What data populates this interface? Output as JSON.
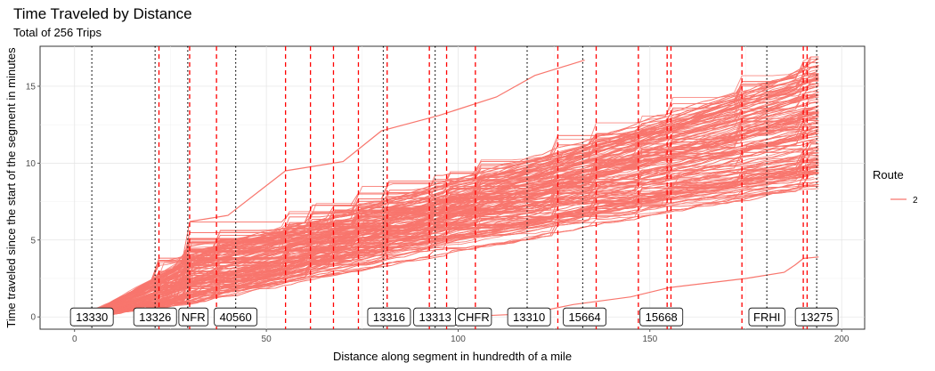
{
  "chart_data": {
    "type": "line",
    "title": "Time Traveled by Distance",
    "subtitle": "Total of 256 Trips",
    "xlabel": "Distance along segment in hundredth of a mile",
    "ylabel": "Time traveled since the start of the segment in minutes",
    "xlim": [
      -9,
      206
    ],
    "ylim": [
      -0.8,
      17.6
    ],
    "x_ticks": [
      0,
      50,
      100,
      150,
      200
    ],
    "y_ticks": [
      0,
      5,
      10,
      15
    ],
    "grid": true,
    "legend": {
      "title": "Route",
      "entries": [
        {
          "name": "2",
          "color": "#F8766D"
        }
      ],
      "position": "right"
    },
    "series_color": "#F8766D",
    "trip_count": 256,
    "reference_lines": {
      "stops_dotted": [
        4.5,
        21,
        29.5,
        42,
        80.5,
        94,
        118,
        132.5,
        180.5,
        193.5
      ],
      "timepoints_dashed": [
        22,
        30,
        37,
        55,
        61.5,
        67.5,
        74,
        81.5,
        92.5,
        97,
        104.5,
        126,
        136,
        147,
        154.5,
        155.5,
        174,
        190,
        191
      ]
    },
    "stop_labels": [
      {
        "label": "13330",
        "x": 4.5
      },
      {
        "label": "13326",
        "x": 21
      },
      {
        "label": "NFR",
        "x": 31
      },
      {
        "label": "40560",
        "x": 42
      },
      {
        "label": "13316",
        "x": 82
      },
      {
        "label": "13313",
        "x": 94
      },
      {
        "label": "CHFR",
        "x": 104
      },
      {
        "label": "13310",
        "x": 118.5
      },
      {
        "label": "15664",
        "x": 133
      },
      {
        "label": "15668",
        "x": 153
      },
      {
        "label": "FRHI",
        "x": 180.5
      },
      {
        "label": "13275",
        "x": 193.5
      }
    ],
    "representative_trips": [
      {
        "x": [
          0,
          10,
          20,
          30,
          45,
          55,
          70,
          80,
          95,
          105,
          120,
          135,
          150,
          165,
          180,
          190,
          194
        ],
        "y": [
          0,
          0.6,
          1.2,
          2.3,
          3.0,
          3.8,
          4.5,
          5.2,
          6.4,
          7.0,
          7.6,
          8.4,
          9.6,
          10.3,
          11.2,
          12.0,
          12.4
        ]
      },
      {
        "x": [
          0,
          20,
          30,
          55,
          80,
          100,
          130,
          150,
          180,
          194
        ],
        "y": [
          0,
          0.5,
          1.5,
          2.5,
          3.7,
          5.0,
          6.3,
          7.8,
          8.6,
          9.4
        ]
      },
      {
        "x": [
          0,
          20,
          30,
          55,
          75,
          95,
          120,
          145,
          175,
          194
        ],
        "y": [
          0,
          1.3,
          4.6,
          5.6,
          7.0,
          8.7,
          10.2,
          12.0,
          14.6,
          15.7
        ]
      },
      {
        "x": [
          30,
          40,
          55,
          70,
          80,
          95,
          110,
          120,
          133
        ],
        "y": [
          6.2,
          6.6,
          9.5,
          10.1,
          12.1,
          13.1,
          14.3,
          15.7,
          16.7
        ]
      },
      {
        "x": [
          0,
          20,
          30,
          80,
          110,
          130,
          150,
          175,
          194
        ],
        "y": [
          0,
          1.5,
          3.0,
          6.3,
          8.3,
          9.8,
          11.6,
          14.1,
          16.8
        ]
      }
    ],
    "outlier_trip": {
      "x": [
        100,
        118,
        120,
        130,
        145,
        155,
        175,
        185,
        188,
        190,
        194
      ],
      "y": [
        0,
        0.2,
        0.3,
        0.8,
        1.3,
        1.9,
        2.5,
        2.9,
        3.4,
        3.8,
        3.9
      ]
    }
  }
}
